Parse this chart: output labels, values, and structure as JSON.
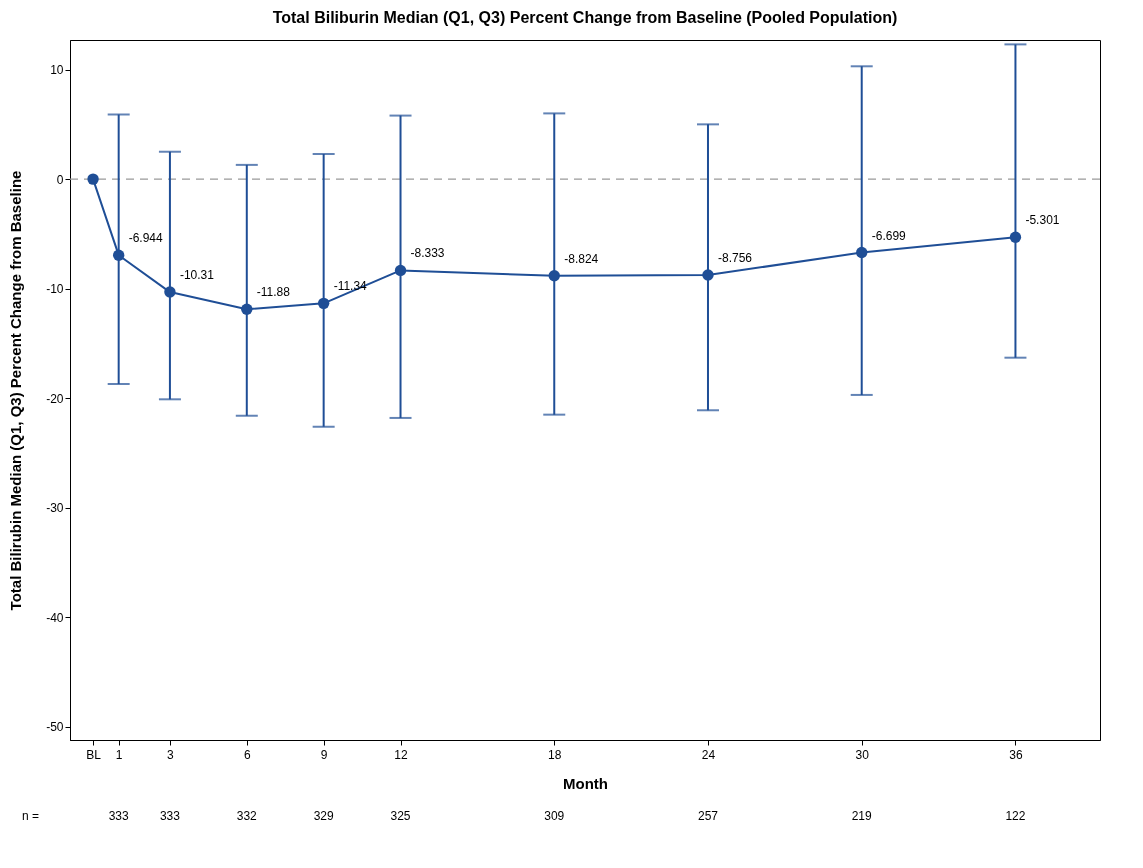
{
  "chart_data": {
    "type": "line",
    "title": "Total Biliburin Median (Q1, Q3) Percent Change from Baseline (Pooled Population)",
    "xlabel": "Month",
    "ylabel": "Total Bilirubin Median (Q1, Q3) Percent Change from Baseline",
    "x": [
      0,
      1,
      3,
      6,
      9,
      12,
      18,
      24,
      30,
      36
    ],
    "series": [
      {
        "color": "#1f4e96",
        "values": [
          0,
          -6.944,
          -10.31,
          -11.88,
          -11.34,
          -8.333,
          -8.824,
          -8.756,
          -6.699,
          -5.301
        ],
        "errors": [
          null,
          [
            -18.7,
            5.9
          ],
          [
            -20.1,
            2.5
          ],
          [
            -21.6,
            1.3
          ],
          [
            -22.6,
            2.3
          ],
          [
            -21.8,
            5.8
          ],
          [
            -21.5,
            6.0
          ],
          [
            -21.1,
            5.0
          ],
          [
            -19.7,
            10.3
          ],
          [
            -16.3,
            12.3
          ]
        ],
        "value_labels": [
          null,
          "-6.944",
          "-10.31",
          "-11.88",
          "-11.34",
          "-8.333",
          "-8.824",
          "-8.756",
          "-6.699",
          "-5.301"
        ]
      }
    ],
    "xlim": [
      -0.9,
      39.3
    ],
    "xticks": [
      {
        "value": 0,
        "label": "BL"
      },
      1,
      3,
      6,
      9,
      12,
      18,
      24,
      30,
      36
    ],
    "ylim": [
      -51.2,
      12.7
    ],
    "yticks": [
      -50,
      -40,
      -30,
      -20,
      -10,
      0,
      10
    ],
    "ref_lines": [
      {
        "axis": "y",
        "value": 0,
        "color": "#999999",
        "line_style": "dashed"
      }
    ],
    "annotations": [
      "n =",
      "333",
      "333",
      "332",
      "329",
      "325",
      "309",
      "257",
      "219",
      "122"
    ],
    "grid": false,
    "marker": "circle",
    "line_style": "solid"
  }
}
